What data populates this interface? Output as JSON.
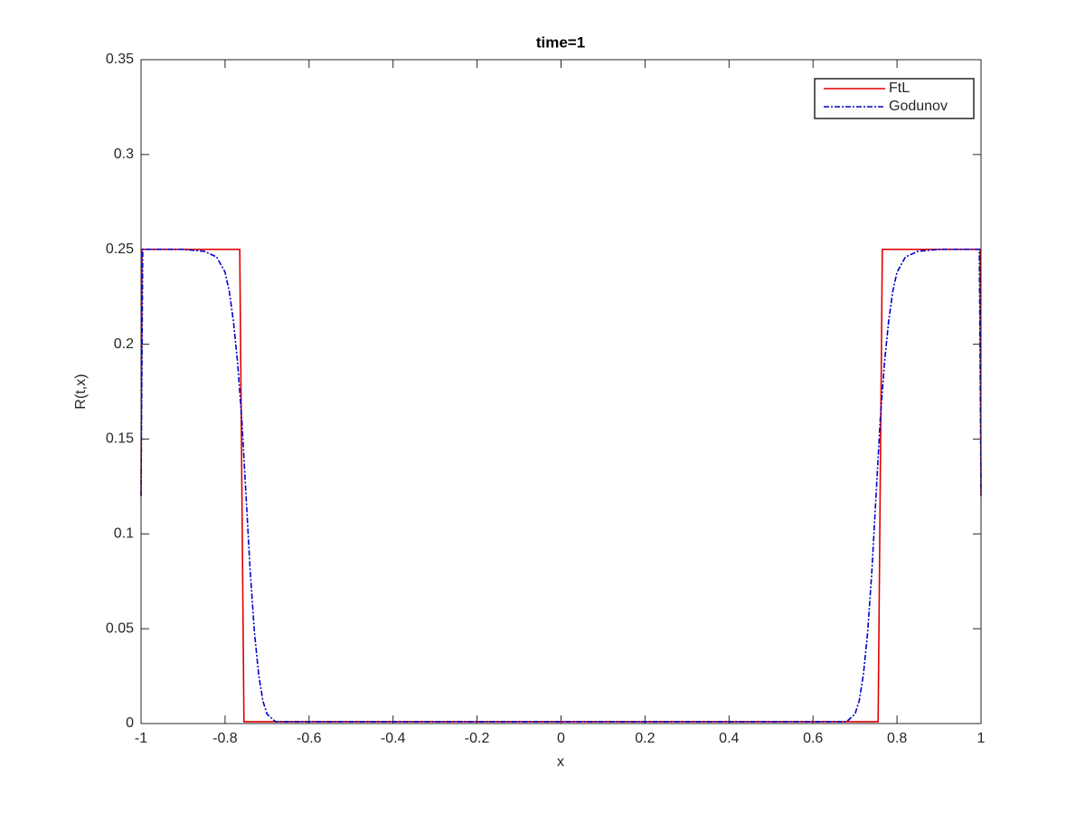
{
  "chart_data": {
    "type": "line",
    "title": "time=1",
    "x_label": "x",
    "y_label": "R(t,x)",
    "xlim": [
      -1,
      1
    ],
    "ylim": [
      0,
      0.35
    ],
    "xticks": [
      -1,
      -0.8,
      -0.6,
      -0.4,
      -0.2,
      0,
      0.2,
      0.4,
      0.6,
      0.8,
      1
    ],
    "yticks": [
      0,
      0.05,
      0.1,
      0.15,
      0.2,
      0.25,
      0.3,
      0.35
    ],
    "legend": "upper right",
    "series": [
      {
        "name": "FtL",
        "color": "#e00000",
        "dash": "solid",
        "x": [
          -1,
          -0.998,
          -0.765,
          -0.755,
          0.755,
          0.765,
          0.998,
          1
        ],
        "values": [
          0.12,
          0.25,
          0.25,
          0.001,
          0.001,
          0.25,
          0.25,
          0.12
        ]
      },
      {
        "name": "Godunov",
        "color": "#0000cc",
        "dash": "dashdot",
        "x": [
          -1,
          -0.996,
          -0.9,
          -0.85,
          -0.82,
          -0.8,
          -0.79,
          -0.78,
          -0.77,
          -0.76,
          -0.75,
          -0.74,
          -0.73,
          -0.72,
          -0.71,
          -0.7,
          -0.68,
          0.68,
          0.7,
          0.71,
          0.72,
          0.73,
          0.74,
          0.75,
          0.76,
          0.77,
          0.78,
          0.79,
          0.8,
          0.82,
          0.85,
          0.9,
          0.996,
          1
        ],
        "values": [
          0.12,
          0.25,
          0.25,
          0.249,
          0.246,
          0.238,
          0.228,
          0.212,
          0.19,
          0.16,
          0.12,
          0.08,
          0.048,
          0.026,
          0.012,
          0.005,
          0.001,
          0.001,
          0.005,
          0.012,
          0.026,
          0.048,
          0.08,
          0.12,
          0.16,
          0.19,
          0.212,
          0.228,
          0.238,
          0.246,
          0.249,
          0.25,
          0.25,
          0.12
        ]
      }
    ]
  }
}
